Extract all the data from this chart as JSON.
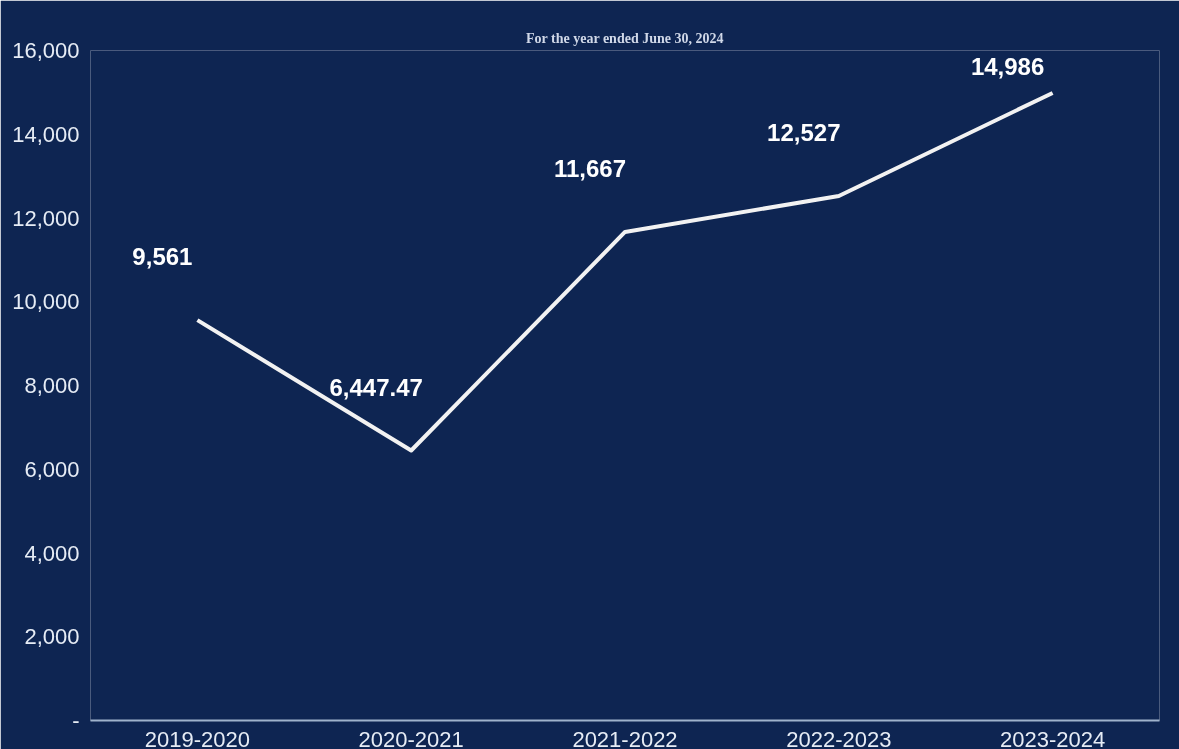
{
  "chart_data": {
    "type": "line",
    "categories": [
      "2019-2020",
      "2020-2021",
      "2021-2022",
      "2022-2023",
      "2023-2024"
    ],
    "series": [
      {
        "color": "#f2f2f2",
        "values": [
          9561,
          6447.47,
          11667,
          12527,
          14986
        ],
        "value_labels": [
          "9,561",
          "6,447.47",
          "11,667",
          "12,527",
          "14,986"
        ]
      }
    ],
    "ylim": [
      0,
      16000
    ],
    "yticks": [
      {
        "value": 0,
        "label": "-"
      },
      {
        "value": 2000,
        "label": "2,000"
      },
      {
        "value": 4000,
        "label": "4,000"
      },
      {
        "value": 6000,
        "label": "6,000"
      },
      {
        "value": 8000,
        "label": "8,000"
      },
      {
        "value": 10000,
        "label": "10,000"
      },
      {
        "value": 12000,
        "label": "12,000"
      },
      {
        "value": 14000,
        "label": "14,000"
      },
      {
        "value": 16000,
        "label": "16,000"
      }
    ],
    "annotations": [
      "For the year ended June 30, 2024"
    ],
    "grid": false,
    "marker": "none",
    "line_style": "solid"
  }
}
